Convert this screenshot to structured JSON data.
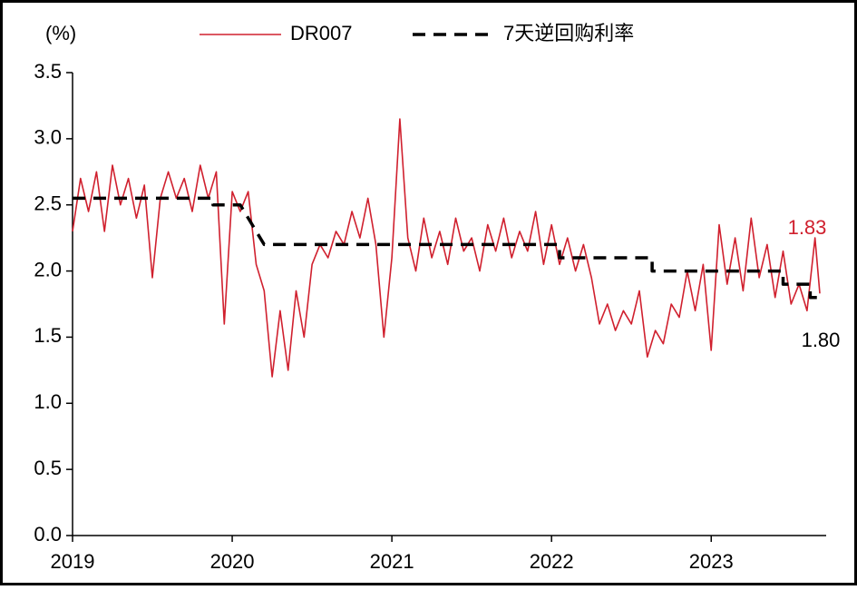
{
  "chart_data": {
    "type": "line",
    "y_unit_label": "(%)",
    "xlim": [
      2019,
      2023.72
    ],
    "xticks": [
      2019,
      2020,
      2021,
      2022,
      2023
    ],
    "ylim": [
      0,
      3.5
    ],
    "yticks": [
      {
        "value": 0,
        "label": "0.0"
      },
      {
        "value": 0.5,
        "label": "0.5"
      },
      {
        "value": 1,
        "label": "1.0"
      },
      {
        "value": 1.5,
        "label": "1.5"
      },
      {
        "value": 2,
        "label": "2.0"
      },
      {
        "value": 2.5,
        "label": "2.5"
      },
      {
        "value": 3,
        "label": "3.0"
      },
      {
        "value": 3.5,
        "label": "3.5"
      }
    ],
    "grid": false,
    "series": [
      {
        "name": "DR007",
        "color": "#d0202e",
        "dashed": false,
        "x": [
          2019.0,
          2019.05,
          2019.1,
          2019.15,
          2019.2,
          2019.25,
          2019.3,
          2019.35,
          2019.4,
          2019.45,
          2019.5,
          2019.55,
          2019.6,
          2019.65,
          2019.7,
          2019.75,
          2019.8,
          2019.85,
          2019.9,
          2019.95,
          2020.0,
          2020.05,
          2020.1,
          2020.15,
          2020.2,
          2020.25,
          2020.3,
          2020.35,
          2020.4,
          2020.45,
          2020.5,
          2020.55,
          2020.6,
          2020.65,
          2020.7,
          2020.75,
          2020.8,
          2020.85,
          2020.9,
          2020.95,
          2021.0,
          2021.05,
          2021.1,
          2021.15,
          2021.2,
          2021.25,
          2021.3,
          2021.35,
          2021.4,
          2021.45,
          2021.5,
          2021.55,
          2021.6,
          2021.65,
          2021.7,
          2021.75,
          2021.8,
          2021.85,
          2021.9,
          2021.95,
          2022.0,
          2022.05,
          2022.1,
          2022.15,
          2022.2,
          2022.25,
          2022.3,
          2022.35,
          2022.4,
          2022.45,
          2022.5,
          2022.55,
          2022.6,
          2022.65,
          2022.7,
          2022.75,
          2022.8,
          2022.85,
          2022.9,
          2022.95,
          2023.0,
          2023.05,
          2023.1,
          2023.15,
          2023.2,
          2023.25,
          2023.3,
          2023.35,
          2023.4,
          2023.45,
          2023.5,
          2023.55,
          2023.6,
          2023.65,
          2023.68
        ],
        "values": [
          2.3,
          2.7,
          2.45,
          2.75,
          2.3,
          2.8,
          2.5,
          2.7,
          2.4,
          2.65,
          1.95,
          2.55,
          2.75,
          2.55,
          2.7,
          2.45,
          2.8,
          2.55,
          2.75,
          1.6,
          2.6,
          2.45,
          2.6,
          2.05,
          1.85,
          1.2,
          1.7,
          1.25,
          1.85,
          1.5,
          2.05,
          2.2,
          2.1,
          2.3,
          2.2,
          2.45,
          2.25,
          2.55,
          2.2,
          1.5,
          2.1,
          3.15,
          2.25,
          2.0,
          2.4,
          2.1,
          2.3,
          2.05,
          2.4,
          2.15,
          2.25,
          2.0,
          2.35,
          2.15,
          2.4,
          2.1,
          2.3,
          2.15,
          2.45,
          2.05,
          2.35,
          2.05,
          2.25,
          2.0,
          2.2,
          1.95,
          1.6,
          1.75,
          1.55,
          1.7,
          1.6,
          1.85,
          1.35,
          1.55,
          1.45,
          1.75,
          1.65,
          2.0,
          1.7,
          2.05,
          1.4,
          2.35,
          1.9,
          2.25,
          1.85,
          2.4,
          1.95,
          2.2,
          1.8,
          2.15,
          1.75,
          1.9,
          1.7,
          2.25,
          1.83
        ]
      },
      {
        "name": "7天逆回购利率",
        "color": "#000000",
        "dashed": true,
        "x": [
          2019.0,
          2019.88,
          2019.88,
          2020.05,
          2020.2,
          2022.05,
          2022.05,
          2022.63,
          2022.63,
          2023.45,
          2023.45,
          2023.62,
          2023.62,
          2023.68
        ],
        "values": [
          2.55,
          2.55,
          2.5,
          2.5,
          2.2,
          2.2,
          2.1,
          2.1,
          2.0,
          2.0,
          1.9,
          1.9,
          1.8,
          1.8
        ]
      }
    ],
    "annotations": [
      {
        "text": "1.83",
        "color": "#d0202e"
      },
      {
        "text": "1.80",
        "color": "#000000"
      }
    ]
  }
}
